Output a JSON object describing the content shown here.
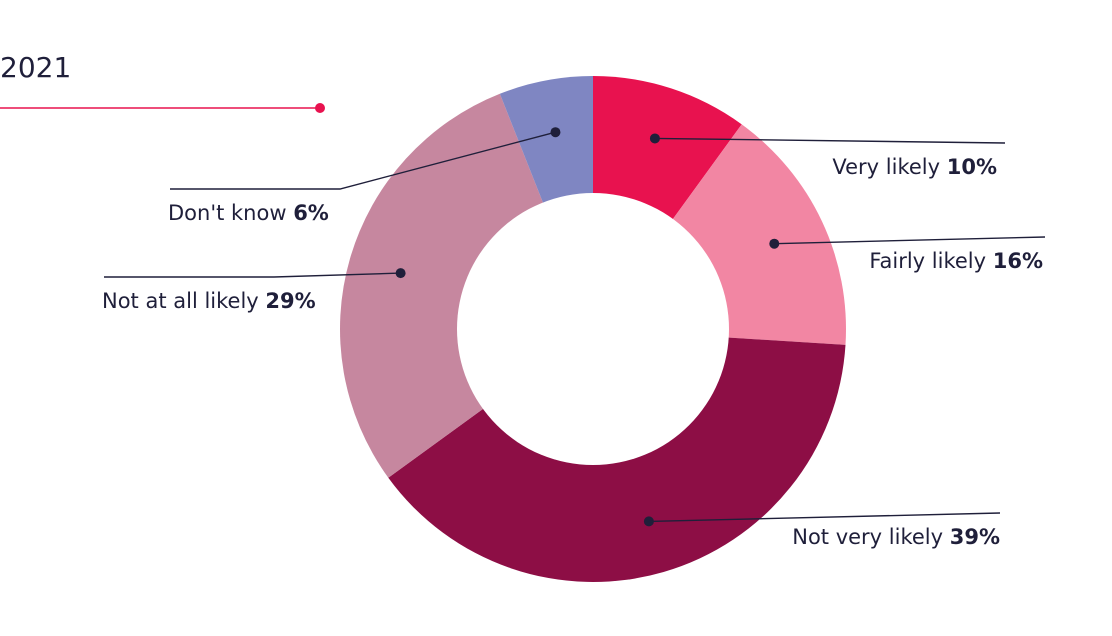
{
  "chart_data": {
    "type": "pie",
    "title": "2021",
    "title_color": "#1f1f3a",
    "accent_color": "#e8124f",
    "label_color": "#1f1f3a",
    "donut": true,
    "legend": "none",
    "slices": [
      {
        "label": "Very likely",
        "value": 10,
        "value_text": "10%",
        "color": "#e8124f"
      },
      {
        "label": "Fairly likely",
        "value": 16,
        "value_text": "16%",
        "color": "#f286a3"
      },
      {
        "label": "Not very likely",
        "value": 39,
        "value_text": "39%",
        "color": "#8d0e45"
      },
      {
        "label": "Not at all likely",
        "value": 29,
        "value_text": "29%",
        "color": "#c6879f"
      },
      {
        "label": "Don't know",
        "value": 6,
        "value_text": "6%",
        "color": "#7f86c2"
      }
    ]
  }
}
